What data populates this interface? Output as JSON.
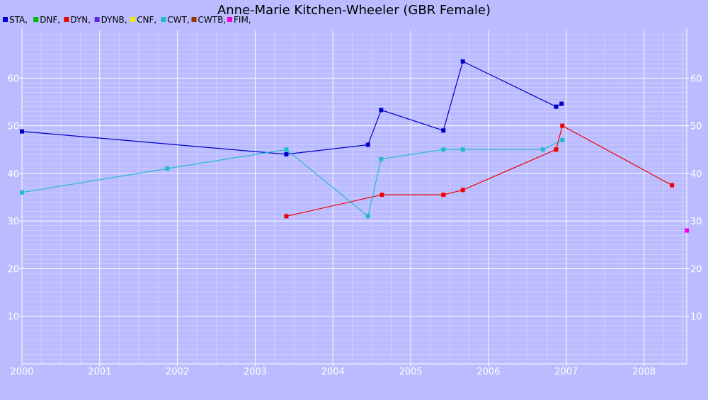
{
  "chart_data": {
    "type": "line",
    "title": "Anne-Marie Kitchen-Wheeler (GBR Female)",
    "xlabel": "",
    "ylabel": "",
    "xlim": [
      2000.0,
      2008.55
    ],
    "ylim": [
      0,
      70
    ],
    "x_ticks": [
      "2000",
      "2001",
      "2002",
      "2003",
      "2004",
      "2005",
      "2006",
      "2007",
      "2008"
    ],
    "y_ticks": [
      "10",
      "20",
      "30",
      "40",
      "50",
      "60"
    ],
    "grid": true,
    "legend_position": "top-left",
    "legend": [
      {
        "label": "STA,",
        "color": "#0000cc"
      },
      {
        "label": "DNF,",
        "color": "#00bb00"
      },
      {
        "label": "DYN,",
        "color": "#ee0000"
      },
      {
        "label": "DYNB,",
        "color": "#6622dd"
      },
      {
        "label": "CNF,",
        "color": "#eeee00"
      },
      {
        "label": "CWT,",
        "color": "#22bbcc"
      },
      {
        "label": "CWTB,",
        "color": "#993300"
      },
      {
        "label": "FIM,",
        "color": "#ee00ee"
      }
    ],
    "series": [
      {
        "name": "STA",
        "color": "#0000cc",
        "points": [
          [
            2000.0,
            48.8
          ],
          [
            2003.4,
            44.0
          ],
          [
            2004.45,
            46.0
          ],
          [
            2004.62,
            53.3
          ],
          [
            2005.42,
            49.0
          ],
          [
            2005.67,
            63.5
          ],
          [
            2006.87,
            54.0
          ],
          [
            2006.94,
            54.6
          ]
        ]
      },
      {
        "name": "DYN",
        "color": "#ee0000",
        "points": [
          [
            2003.4,
            31.0
          ],
          [
            2004.63,
            35.5
          ],
          [
            2005.42,
            35.5
          ],
          [
            2005.67,
            36.5
          ],
          [
            2006.87,
            45.0
          ],
          [
            2006.95,
            50.0
          ],
          [
            2008.36,
            37.5
          ]
        ]
      },
      {
        "name": "CWT",
        "color": "#22bbcc",
        "points": [
          [
            2000.0,
            36.0
          ],
          [
            2001.87,
            41.0
          ],
          [
            2003.4,
            45.0
          ],
          [
            2004.45,
            31.0
          ],
          [
            2004.62,
            43.0
          ],
          [
            2005.42,
            45.0
          ],
          [
            2005.67,
            45.0
          ],
          [
            2006.7,
            45.0
          ],
          [
            2006.95,
            47.0
          ]
        ]
      },
      {
        "name": "FIM",
        "color": "#ee00ee",
        "points": [
          [
            2008.55,
            28.0
          ]
        ]
      }
    ]
  }
}
